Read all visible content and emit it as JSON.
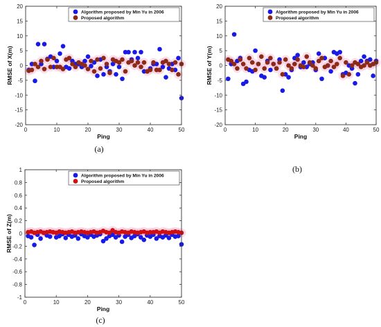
{
  "chart_data": [
    {
      "type": "scatter",
      "panel_label": "(a)",
      "xlabel": "Ping",
      "ylabel": "RMSE of X(m)",
      "xlim": [
        0,
        50
      ],
      "ylim": [
        -20,
        20
      ],
      "xticks": [
        0,
        10,
        20,
        30,
        40,
        50
      ],
      "yticks": [
        -20,
        -15,
        -10,
        -5,
        0,
        5,
        10,
        15,
        20
      ],
      "grid": false,
      "legend_position": "top-right",
      "series": [
        {
          "name": "Algorithm proposed by Min Yu in 2006",
          "color": "#1a1ae6",
          "x": [
            1,
            2,
            3,
            4,
            5,
            6,
            7,
            8,
            9,
            10,
            11,
            12,
            13,
            14,
            15,
            16,
            17,
            18,
            19,
            20,
            21,
            22,
            23,
            24,
            25,
            26,
            27,
            28,
            29,
            30,
            31,
            32,
            33,
            34,
            35,
            36,
            37,
            38,
            39,
            40,
            41,
            42,
            43,
            44,
            45,
            46,
            47,
            48,
            49,
            50
          ],
          "y": [
            -1.5,
            0.5,
            -5.2,
            7.2,
            0.5,
            7.2,
            2.2,
            3.0,
            -0.5,
            1.5,
            4.0,
            6.5,
            -0.5,
            -1.0,
            1.5,
            0.5,
            0.5,
            -0.5,
            1.5,
            3.0,
            -0.2,
            1.0,
            -3.5,
            2.0,
            -3.0,
            -0.5,
            -2.0,
            0.5,
            -3.0,
            -0.5,
            -4.5,
            4.5,
            4.5,
            2.0,
            4.5,
            2.5,
            4.5,
            -2.0,
            -2.0,
            -1.0,
            0.5,
            0.5,
            5.5,
            -0.5,
            -4.0,
            -1.0,
            0.5,
            -1.5,
            2.5,
            -11.0
          ]
        },
        {
          "name": "Proposed algorithm",
          "color": "#8b2b17",
          "x": [
            1,
            2,
            3,
            4,
            5,
            6,
            7,
            8,
            9,
            10,
            11,
            12,
            13,
            14,
            15,
            16,
            17,
            18,
            19,
            20,
            21,
            22,
            23,
            24,
            25,
            26,
            27,
            28,
            29,
            30,
            31,
            32,
            33,
            34,
            35,
            36,
            37,
            38,
            39,
            40,
            41,
            42,
            43,
            44,
            45,
            46,
            47,
            48,
            49,
            50
          ],
          "y": [
            -1.8,
            -1.5,
            0.5,
            -0.5,
            1.5,
            -1.2,
            2.0,
            -0.5,
            2.5,
            -0.5,
            -0.5,
            -1.2,
            2.0,
            2.5,
            0.5,
            -0.5,
            1.0,
            0.5,
            0.0,
            -1.2,
            1.5,
            -2.0,
            2.0,
            -1.0,
            2.5,
            0.5,
            -2.5,
            2.0,
            1.5,
            1.0,
            2.0,
            -2.0,
            1.0,
            1.5,
            0.0,
            1.0,
            -0.5,
            1.0,
            -2.0,
            -1.5,
            1.0,
            -1.5,
            -1.5,
            1.0,
            1.5,
            0.5,
            -1.5,
            1.0,
            -3.0,
            0.5
          ]
        }
      ]
    },
    {
      "type": "scatter",
      "panel_label": "(b)",
      "xlabel": "Ping",
      "ylabel": "RMSE of Y(m)",
      "xlim": [
        0,
        50
      ],
      "ylim": [
        -20,
        20
      ],
      "xticks": [
        0,
        10,
        20,
        30,
        40,
        50
      ],
      "yticks": [
        -20,
        -15,
        -10,
        -5,
        0,
        5,
        10,
        15,
        20
      ],
      "grid": false,
      "legend_position": "top-right",
      "series": [
        {
          "name": "Algorithm proposed by Min Yu in 2006",
          "color": "#1a1ae6",
          "x": [
            1,
            2,
            3,
            4,
            5,
            6,
            7,
            8,
            9,
            10,
            11,
            12,
            13,
            14,
            15,
            16,
            17,
            18,
            19,
            20,
            21,
            22,
            23,
            24,
            25,
            26,
            27,
            28,
            29,
            30,
            31,
            32,
            33,
            34,
            35,
            36,
            37,
            38,
            39,
            40,
            41,
            42,
            43,
            44,
            45,
            46,
            47,
            48,
            49,
            50
          ],
          "y": [
            -4.5,
            0.5,
            10.5,
            1.5,
            2.5,
            -6.2,
            -5.5,
            -1.5,
            -2.0,
            5.0,
            0.5,
            -3.5,
            -4.0,
            1.5,
            -1.5,
            0.5,
            -1.0,
            2.0,
            -8.5,
            -3.0,
            -4.0,
            -1.5,
            2.5,
            3.5,
            -0.5,
            1.0,
            -0.5,
            0.5,
            1.0,
            -1.5,
            4.0,
            -4.5,
            2.5,
            0.0,
            -2.0,
            4.5,
            4.0,
            4.5,
            -3.0,
            -2.5,
            0.0,
            -1.0,
            -6.0,
            -3.0,
            1.5,
            3.0,
            1.5,
            2.0,
            -3.5,
            1.5
          ]
        },
        {
          "name": "Proposed algorithm",
          "color": "#8b2b17",
          "x": [
            1,
            2,
            3,
            4,
            5,
            6,
            7,
            8,
            9,
            10,
            11,
            12,
            13,
            14,
            15,
            16,
            17,
            18,
            19,
            20,
            21,
            22,
            23,
            24,
            25,
            26,
            27,
            28,
            29,
            30,
            31,
            32,
            33,
            34,
            35,
            36,
            37,
            38,
            39,
            40,
            41,
            42,
            43,
            44,
            45,
            46,
            47,
            48,
            49,
            50
          ],
          "y": [
            2.0,
            1.5,
            0.5,
            -1.0,
            2.0,
            0.5,
            -1.0,
            2.5,
            1.0,
            -1.5,
            0.5,
            3.0,
            -1.0,
            1.0,
            2.5,
            0.5,
            -1.0,
            1.0,
            -3.0,
            2.0,
            0.0,
            -1.0,
            0.5,
            2.0,
            0.0,
            -0.5,
            3.0,
            1.0,
            0.0,
            -1.0,
            1.5,
            2.5,
            -0.5,
            0.0,
            1.5,
            -0.5,
            0.5,
            2.5,
            -3.5,
            1.0,
            -3.0,
            0.0,
            1.0,
            0.5,
            -0.5,
            0.0,
            1.0,
            0.0,
            0.5,
            1.0
          ]
        }
      ]
    },
    {
      "type": "scatter",
      "panel_label": "(c)",
      "xlabel": "Ping",
      "ylabel": "RMSE of Z(m)",
      "xlim": [
        0,
        50
      ],
      "ylim": [
        -1,
        1
      ],
      "xticks": [
        0,
        10,
        20,
        30,
        40,
        50
      ],
      "yticks": [
        -1,
        -0.8,
        -0.6,
        -0.4,
        -0.2,
        0,
        0.2,
        0.4,
        0.6,
        0.8,
        1
      ],
      "grid": false,
      "legend_position": "top-right",
      "series": [
        {
          "name": "Algorithm proposed by Min Yu in 2006",
          "color": "#1a1ae6",
          "x": [
            1,
            2,
            3,
            4,
            5,
            6,
            7,
            8,
            9,
            10,
            11,
            12,
            13,
            14,
            15,
            16,
            17,
            18,
            19,
            20,
            21,
            22,
            23,
            24,
            25,
            26,
            27,
            28,
            29,
            30,
            31,
            32,
            33,
            34,
            35,
            36,
            37,
            38,
            39,
            40,
            41,
            42,
            43,
            44,
            45,
            46,
            47,
            48,
            49,
            50
          ],
          "y": [
            -0.04,
            -0.06,
            -0.18,
            -0.02,
            -0.08,
            0.01,
            -0.03,
            -0.05,
            0.02,
            -0.06,
            -0.04,
            -0.01,
            -0.07,
            -0.02,
            -0.05,
            -0.03,
            -0.08,
            -0.01,
            -0.04,
            -0.06,
            -0.02,
            -0.05,
            -0.03,
            -0.01,
            -0.12,
            -0.08,
            -0.04,
            -0.02,
            -0.06,
            -0.03,
            -0.13,
            -0.05,
            -0.02,
            -0.07,
            -0.04,
            -0.01,
            -0.06,
            -0.1,
            -0.03,
            -0.05,
            -0.02,
            -0.08,
            -0.04,
            -0.06,
            -0.03,
            -0.07,
            -0.02,
            -0.05,
            -0.04,
            -0.17
          ]
        },
        {
          "name": "Proposed algorithm",
          "color": "#d01010",
          "x": [
            1,
            2,
            3,
            4,
            5,
            6,
            7,
            8,
            9,
            10,
            11,
            12,
            13,
            14,
            15,
            16,
            17,
            18,
            19,
            20,
            21,
            22,
            23,
            24,
            25,
            26,
            27,
            28,
            29,
            30,
            31,
            32,
            33,
            34,
            35,
            36,
            37,
            38,
            39,
            40,
            41,
            42,
            43,
            44,
            45,
            46,
            47,
            48,
            49,
            50
          ],
          "y": [
            0.02,
            0.03,
            0.01,
            0.02,
            0.03,
            0.01,
            0.02,
            0.03,
            0.02,
            0.01,
            0.03,
            0.02,
            0.01,
            0.02,
            0.03,
            0.01,
            0.02,
            0.03,
            0.02,
            0.01,
            0.02,
            0.03,
            0.01,
            0.02,
            0.04,
            0.02,
            0.01,
            0.05,
            0.02,
            0.01,
            0.03,
            0.02,
            0.01,
            0.03,
            0.02,
            0.01,
            0.02,
            0.03,
            0.01,
            0.02,
            0.02,
            0.03,
            0.01,
            0.03,
            0.02,
            0.01,
            0.02,
            0.03,
            0.02,
            0.01
          ]
        }
      ]
    }
  ]
}
